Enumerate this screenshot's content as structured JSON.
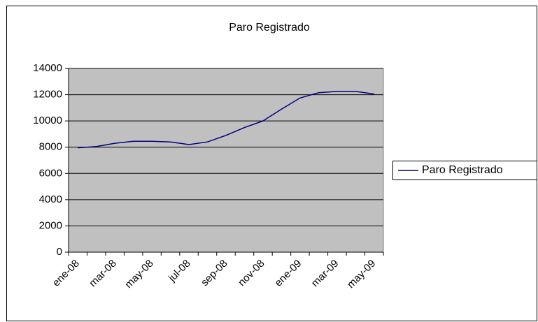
{
  "chart_data": {
    "type": "line",
    "title": "Paro Registrado",
    "categories": [
      "ene-08",
      null,
      "mar-08",
      null,
      "may-08",
      null,
      "jul-08",
      null,
      "sep-08",
      null,
      "nov-08",
      null,
      "ene-09",
      null,
      "mar-09",
      null,
      "may-09"
    ],
    "series": [
      {
        "name": "Paro Registrado",
        "color": "#000080",
        "values": [
          7950,
          8050,
          8300,
          8450,
          8450,
          8400,
          8200,
          8400,
          8900,
          9500,
          10000,
          10900,
          11750,
          12150,
          12250,
          12250,
          12050
        ]
      }
    ],
    "ylim": [
      0,
      14000
    ],
    "yticks": [
      0,
      2000,
      4000,
      6000,
      8000,
      10000,
      12000,
      14000
    ],
    "grid": true,
    "legend": "right",
    "plot_background": "#c0c0c0"
  }
}
